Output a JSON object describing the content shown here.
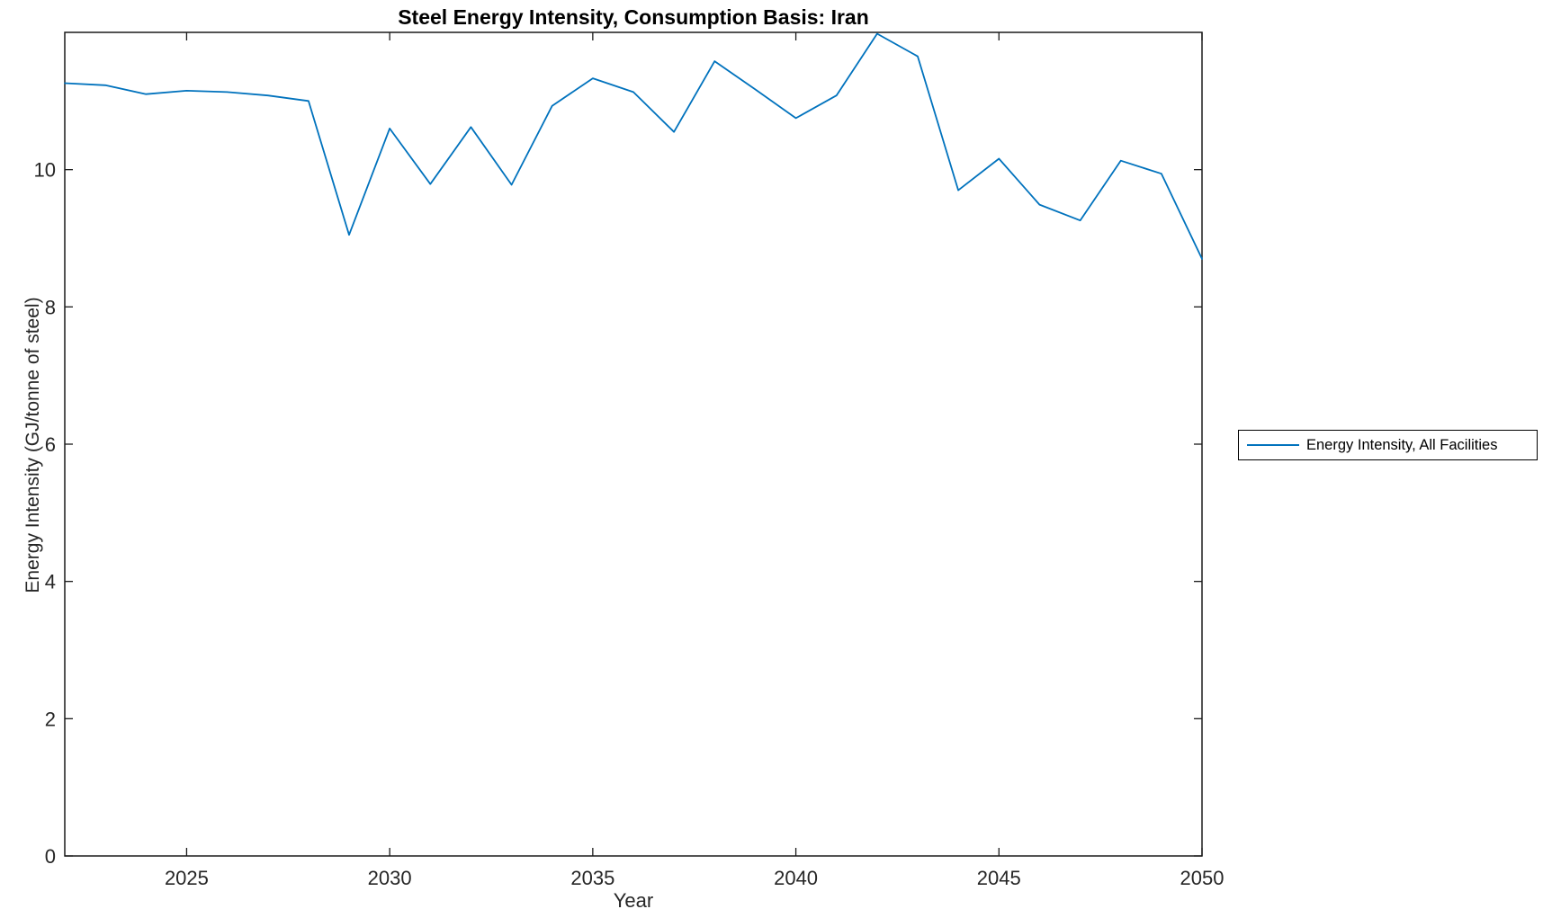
{
  "figure": {
    "background": "#ffffff"
  },
  "chart_data": {
    "type": "line",
    "title": "Steel Energy Intensity, Consumption Basis: Iran",
    "xlabel": "Year",
    "ylabel": "Energy Intensity (GJ/tonne of steel)",
    "xlim": [
      2022,
      2050
    ],
    "ylim": [
      0,
      12
    ],
    "xticks": [
      2025,
      2030,
      2035,
      2040,
      2045,
      2050
    ],
    "yticks": [
      0,
      2,
      4,
      6,
      8,
      10
    ],
    "grid": false,
    "box": true,
    "tick_direction": "in",
    "legend_position": "outside-right",
    "series": [
      {
        "name": "Energy Intensity, All Facilities",
        "color": "#0072BD",
        "x": [
          2022,
          2023,
          2024,
          2025,
          2026,
          2027,
          2028,
          2029,
          2030,
          2031,
          2032,
          2033,
          2034,
          2035,
          2036,
          2037,
          2038,
          2039,
          2040,
          2041,
          2042,
          2043,
          2044,
          2045,
          2046,
          2047,
          2048,
          2049,
          2050
        ],
        "y": [
          11.26,
          11.23,
          11.1,
          11.15,
          11.13,
          11.08,
          11.0,
          9.05,
          10.6,
          9.79,
          10.62,
          9.78,
          10.93,
          11.33,
          11.13,
          10.55,
          11.58,
          11.17,
          10.75,
          11.08,
          11.98,
          11.65,
          9.7,
          10.16,
          9.49,
          9.26,
          10.13,
          9.94,
          8.7
        ]
      }
    ]
  },
  "legend": {
    "label": "Energy Intensity, All Facilities"
  },
  "colors": {
    "line": "#0072BD",
    "axis": "#1a1a1a",
    "tick_label": "#262626",
    "title": "#000000"
  }
}
